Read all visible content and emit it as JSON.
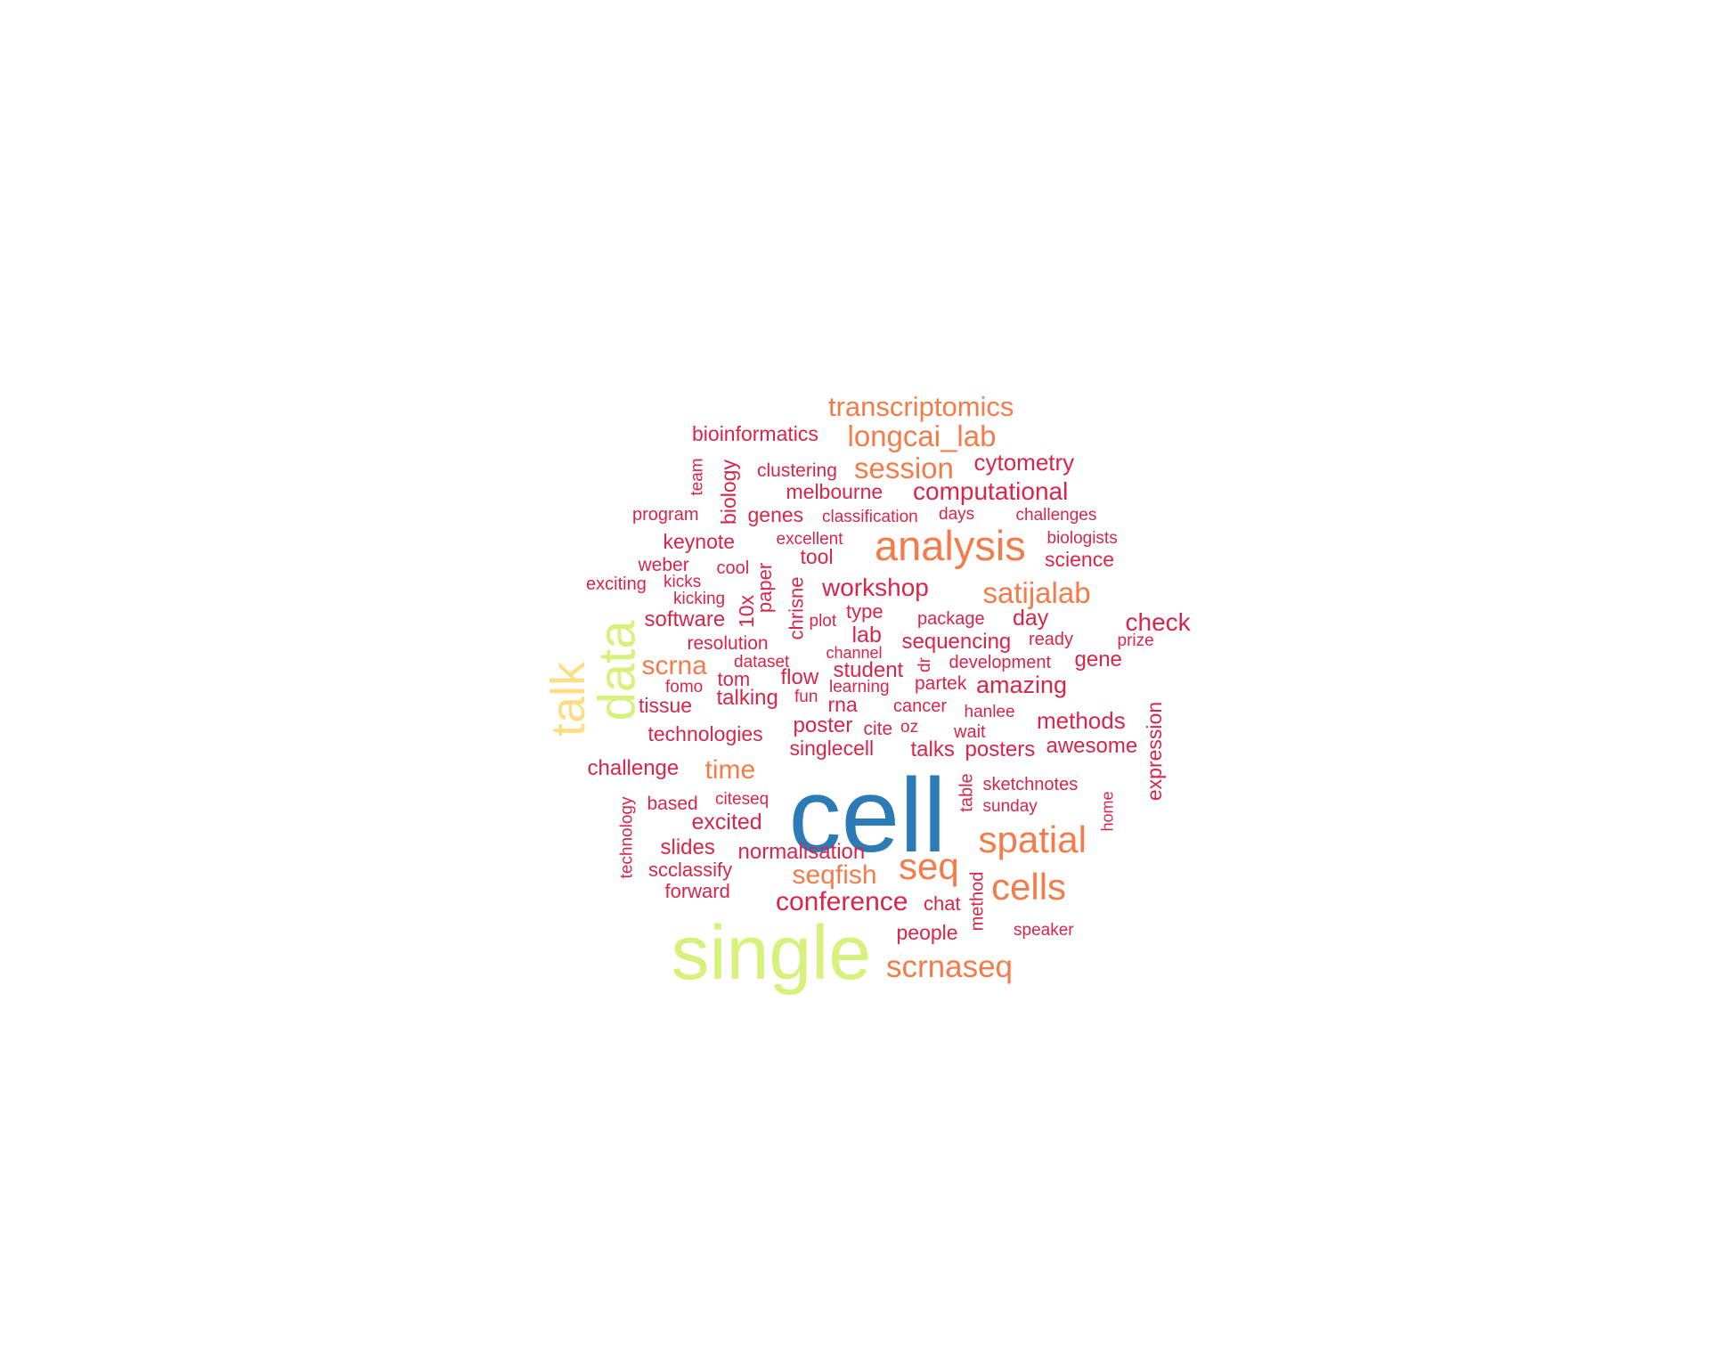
{
  "palette": {
    "top": "#2c7bb6",
    "high": "#d7f17d",
    "highAlt": "#fdde86",
    "mid": "#f47c4a",
    "low": "#d7264a"
  },
  "words": [
    {
      "text": "cell",
      "level": "top"
    },
    {
      "text": "single",
      "level": "high"
    },
    {
      "text": "data",
      "level": "high"
    },
    {
      "text": "talk",
      "level": "highAlt"
    },
    {
      "text": "analysis",
      "level": "mid"
    },
    {
      "text": "transcriptomics",
      "level": "mid"
    },
    {
      "text": "longcai_lab",
      "level": "mid"
    },
    {
      "text": "session",
      "level": "mid"
    },
    {
      "text": "satijalab",
      "level": "mid"
    },
    {
      "text": "spatial",
      "level": "mid"
    },
    {
      "text": "seq",
      "level": "mid"
    },
    {
      "text": "cells",
      "level": "mid"
    },
    {
      "text": "scrnaseq",
      "level": "mid"
    },
    {
      "text": "seqfish",
      "level": "mid"
    },
    {
      "text": "time",
      "level": "mid"
    },
    {
      "text": "scrna",
      "level": "mid"
    },
    {
      "text": "bioinformatics",
      "level": "low"
    },
    {
      "text": "cytometry",
      "level": "low"
    },
    {
      "text": "clustering",
      "level": "low"
    },
    {
      "text": "computational",
      "level": "low"
    },
    {
      "text": "melbourne",
      "level": "low"
    },
    {
      "text": "team",
      "level": "low"
    },
    {
      "text": "biology",
      "level": "low"
    },
    {
      "text": "program",
      "level": "low"
    },
    {
      "text": "genes",
      "level": "low"
    },
    {
      "text": "classification",
      "level": "low"
    },
    {
      "text": "days",
      "level": "low"
    },
    {
      "text": "challenges",
      "level": "low"
    },
    {
      "text": "keynote",
      "level": "low"
    },
    {
      "text": "excellent",
      "level": "low"
    },
    {
      "text": "biologists",
      "level": "low"
    },
    {
      "text": "weber",
      "level": "low"
    },
    {
      "text": "tool",
      "level": "low"
    },
    {
      "text": "science",
      "level": "low"
    },
    {
      "text": "cool",
      "level": "low"
    },
    {
      "text": "exciting",
      "level": "low"
    },
    {
      "text": "kicks",
      "level": "low"
    },
    {
      "text": "paper",
      "level": "low"
    },
    {
      "text": "workshop",
      "level": "low"
    },
    {
      "text": "kicking",
      "level": "low"
    },
    {
      "text": "10x",
      "level": "low"
    },
    {
      "text": "chrisne",
      "level": "low"
    },
    {
      "text": "type",
      "level": "low"
    },
    {
      "text": "package",
      "level": "low"
    },
    {
      "text": "day",
      "level": "low"
    },
    {
      "text": "check",
      "level": "low"
    },
    {
      "text": "software",
      "level": "low"
    },
    {
      "text": "plot",
      "level": "low"
    },
    {
      "text": "lab",
      "level": "low"
    },
    {
      "text": "sequencing",
      "level": "low"
    },
    {
      "text": "ready",
      "level": "low"
    },
    {
      "text": "prize",
      "level": "low"
    },
    {
      "text": "resolution",
      "level": "low"
    },
    {
      "text": "channel",
      "level": "low"
    },
    {
      "text": "dataset",
      "level": "low"
    },
    {
      "text": "dr",
      "level": "low"
    },
    {
      "text": "development",
      "level": "low"
    },
    {
      "text": "gene",
      "level": "low"
    },
    {
      "text": "student",
      "level": "low"
    },
    {
      "text": "fomo",
      "level": "low"
    },
    {
      "text": "tom",
      "level": "low"
    },
    {
      "text": "flow",
      "level": "low"
    },
    {
      "text": "learning",
      "level": "low"
    },
    {
      "text": "partek",
      "level": "low"
    },
    {
      "text": "amazing",
      "level": "low"
    },
    {
      "text": "tissue",
      "level": "low"
    },
    {
      "text": "talking",
      "level": "low"
    },
    {
      "text": "fun",
      "level": "low"
    },
    {
      "text": "rna",
      "level": "low"
    },
    {
      "text": "cancer",
      "level": "low"
    },
    {
      "text": "hanlee",
      "level": "low"
    },
    {
      "text": "expression",
      "level": "low"
    },
    {
      "text": "methods",
      "level": "low"
    },
    {
      "text": "technologies",
      "level": "low"
    },
    {
      "text": "poster",
      "level": "low"
    },
    {
      "text": "cite",
      "level": "low"
    },
    {
      "text": "oz",
      "level": "low"
    },
    {
      "text": "wait",
      "level": "low"
    },
    {
      "text": "singlecell",
      "level": "low"
    },
    {
      "text": "talks",
      "level": "low"
    },
    {
      "text": "posters",
      "level": "low"
    },
    {
      "text": "awesome",
      "level": "low"
    },
    {
      "text": "challenge",
      "level": "low"
    },
    {
      "text": "sketchnotes",
      "level": "low"
    },
    {
      "text": "table",
      "level": "low"
    },
    {
      "text": "technology",
      "level": "low"
    },
    {
      "text": "based",
      "level": "low"
    },
    {
      "text": "citeseq",
      "level": "low"
    },
    {
      "text": "sunday",
      "level": "low"
    },
    {
      "text": "home",
      "level": "low"
    },
    {
      "text": "excited",
      "level": "low"
    },
    {
      "text": "slides",
      "level": "low"
    },
    {
      "text": "normalisation",
      "level": "low"
    },
    {
      "text": "scclassify",
      "level": "low"
    },
    {
      "text": "forward",
      "level": "low"
    },
    {
      "text": "conference",
      "level": "low"
    },
    {
      "text": "chat",
      "level": "low"
    },
    {
      "text": "method",
      "level": "low"
    },
    {
      "text": "people",
      "level": "low"
    },
    {
      "text": "speaker",
      "level": "low"
    }
  ]
}
